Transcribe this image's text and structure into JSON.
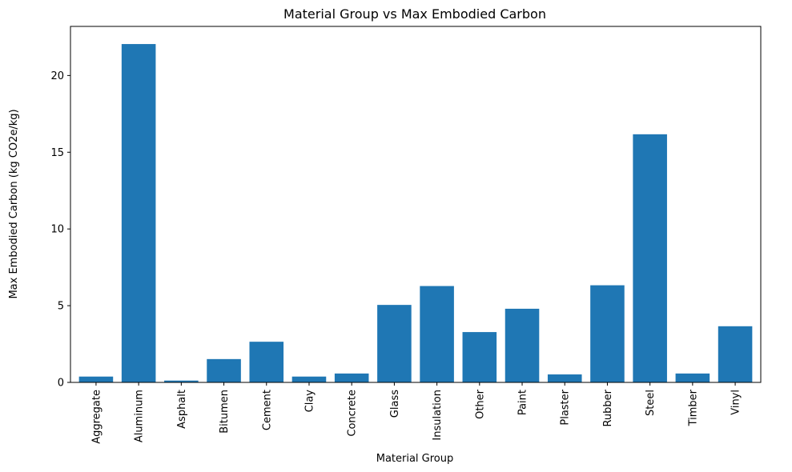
{
  "chart_data": {
    "type": "bar",
    "title": "Material Group vs Max Embodied Carbon",
    "xlabel": "Material Group",
    "ylabel": "Max Embodied Carbon (kg CO2e/kg)",
    "categories": [
      "Aggregate",
      "Aluminum",
      "Asphalt",
      "Bitumen",
      "Cement",
      "Clay",
      "Concrete",
      "Glass",
      "Insulation",
      "Other",
      "Paint",
      "Plaster",
      "Rubber",
      "Steel",
      "Timber",
      "Vinyl"
    ],
    "values": [
      0.38,
      22.05,
      0.12,
      1.52,
      2.65,
      0.38,
      0.58,
      5.05,
      6.28,
      3.28,
      4.8,
      0.52,
      6.33,
      16.17,
      0.58,
      3.66
    ],
    "ylim": [
      0,
      23.2
    ],
    "yticks": [
      0,
      5,
      10,
      15,
      20
    ],
    "bar_color": "#1f77b4",
    "grid": false,
    "legend": "none"
  }
}
